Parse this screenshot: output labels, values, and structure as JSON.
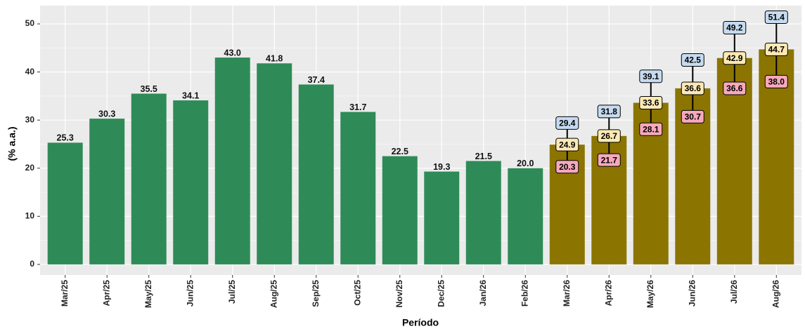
{
  "chart_data": {
    "type": "bar",
    "y_label": "(% a.a.)",
    "x_label": "Período",
    "categories": [
      "Mar/25",
      "Apr/25",
      "May/25",
      "Jun/25",
      "Jul/25",
      "Aug/25",
      "Sep/25",
      "Oct/25",
      "Nov/25",
      "Dec/25",
      "Jan/26",
      "Feb/26",
      "Mar/26",
      "Apr/26",
      "May/26",
      "Jun/26",
      "Jul/26",
      "Aug/26"
    ],
    "series": [
      {
        "color": "#2e8b57",
        "values": [
          25.3,
          30.3,
          35.5,
          34.1,
          43.0,
          41.8,
          37.4,
          31.7,
          22.5,
          19.3,
          21.5,
          20.0,
          null,
          null,
          null,
          null,
          null,
          null
        ],
        "value_labels": [
          "25.3",
          "30.3",
          "35.5",
          "34.1",
          "43.0",
          "41.8",
          "37.4",
          "31.7",
          "22.5",
          "19.3",
          "21.5",
          "20.0",
          null,
          null,
          null,
          null,
          null,
          null
        ]
      },
      {
        "color": "#8b7500",
        "label_fill": "#fde9b5",
        "lower_label_fill": "#f7a8bc",
        "upper_label_fill": "#c6dbf0",
        "values": [
          null,
          null,
          null,
          null,
          null,
          null,
          null,
          null,
          null,
          null,
          null,
          null,
          24.9,
          26.7,
          33.6,
          36.6,
          42.9,
          44.7
        ],
        "value_labels": [
          null,
          null,
          null,
          null,
          null,
          null,
          null,
          null,
          null,
          null,
          null,
          null,
          "24.9",
          "26.7",
          "33.6",
          "36.6",
          "42.9",
          "44.7"
        ],
        "lower": [
          null,
          null,
          null,
          null,
          null,
          null,
          null,
          null,
          null,
          null,
          null,
          null,
          20.3,
          21.7,
          28.1,
          30.7,
          36.6,
          38.0
        ],
        "lower_labels": [
          null,
          null,
          null,
          null,
          null,
          null,
          null,
          null,
          null,
          null,
          null,
          null,
          "20.3",
          "21.7",
          "28.1",
          "30.7",
          "36.6",
          "38.0"
        ],
        "upper": [
          null,
          null,
          null,
          null,
          null,
          null,
          null,
          null,
          null,
          null,
          null,
          null,
          29.4,
          31.8,
          39.1,
          42.5,
          49.2,
          51.4
        ],
        "upper_labels": [
          null,
          null,
          null,
          null,
          null,
          null,
          null,
          null,
          null,
          null,
          null,
          null,
          "29.4",
          "31.8",
          "39.1",
          "42.5",
          "49.2",
          "51.4"
        ]
      }
    ],
    "ylim": [
      -2.2,
      53.8
    ],
    "yticks": [
      0,
      10,
      20,
      30,
      40,
      50
    ],
    "minor_yticks": [
      5,
      15,
      25,
      35,
      45
    ],
    "grid": true
  }
}
